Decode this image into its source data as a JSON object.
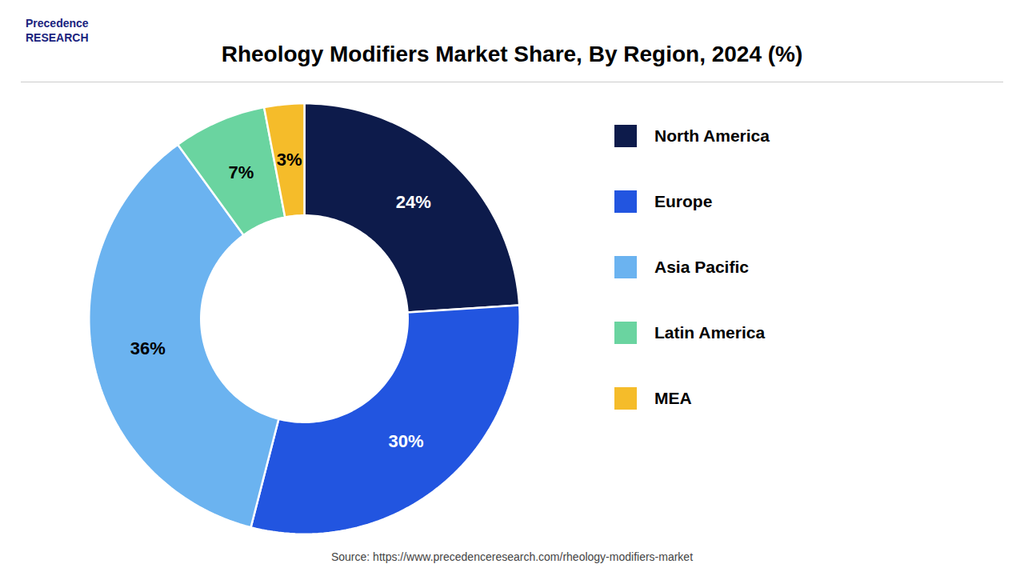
{
  "chart_data": {
    "type": "pie",
    "title": "Rheology Modifiers Market Share, By Region, 2024 (%)",
    "categories": [
      "North America",
      "Europe",
      "Asia Pacific",
      "Latin America",
      "MEA"
    ],
    "values": [
      24,
      30,
      36,
      7,
      3
    ],
    "value_labels": [
      "24%",
      "30%",
      "36%",
      "7%",
      "3%"
    ],
    "colors": [
      "#0d1b4b",
      "#2255e0",
      "#6bb3f0",
      "#6ad4a0",
      "#f5bc2a"
    ],
    "data_labels": true,
    "legend": "right",
    "annotations": [
      "Precedence\nRESEARCH",
      "Source: https://www.precedenceresearch.com/rheology-modifiers-market"
    ]
  }
}
